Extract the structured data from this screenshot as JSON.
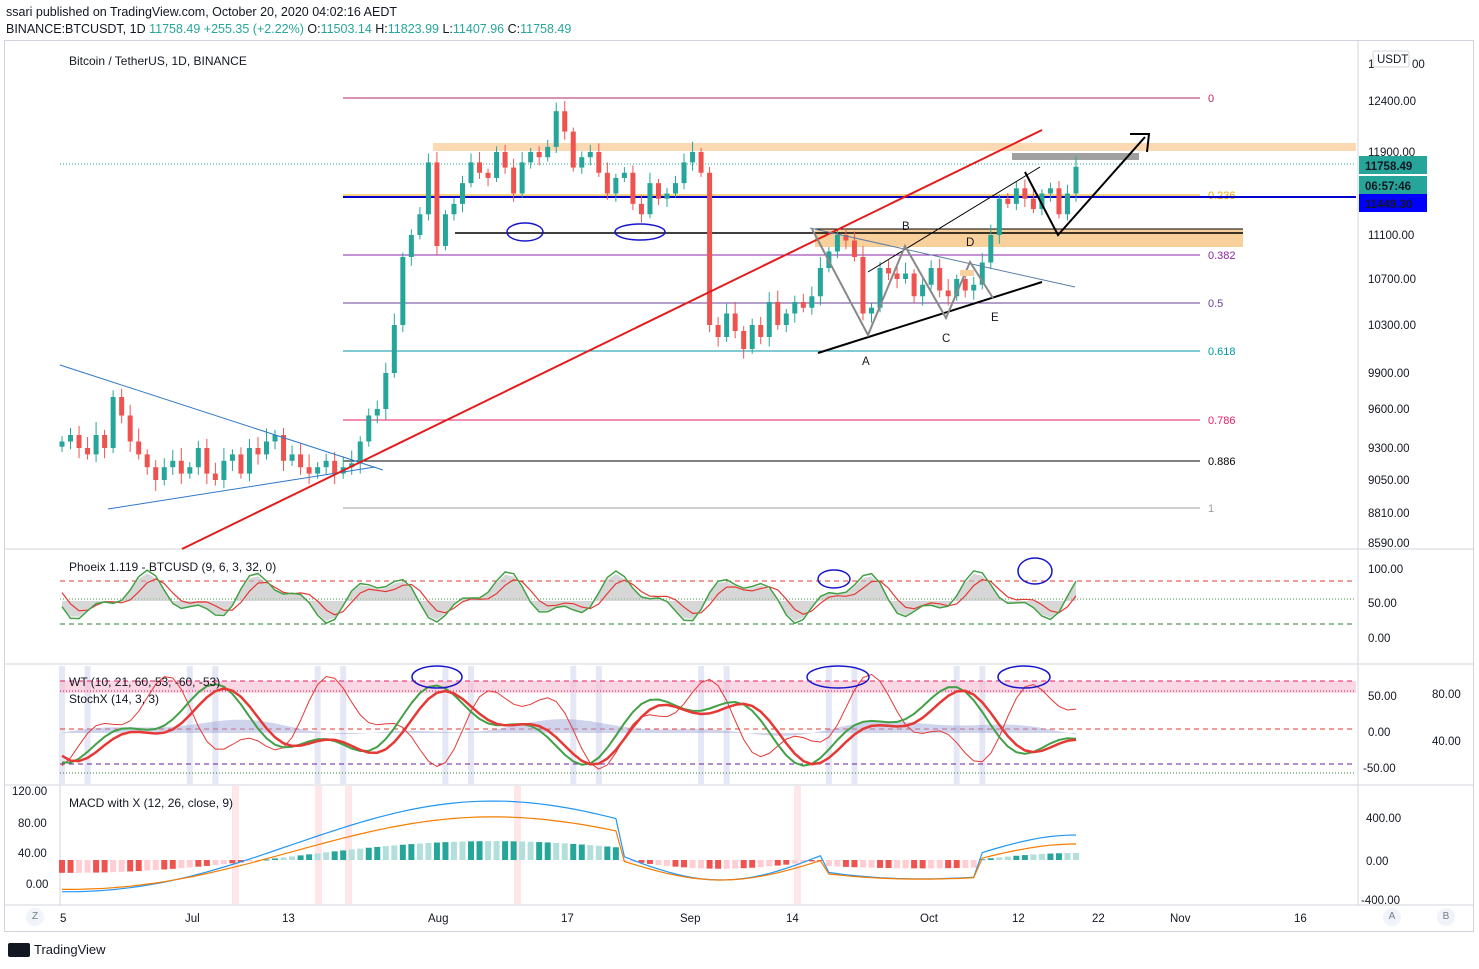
{
  "header": {
    "line1": "ssari published on TradingView.com, October 20, 2020 04:02:16 AEDT",
    "symbol": "BINANCE:BTCUSDT, 1D",
    "last": "11758.49",
    "change": "+255.35 (+2.22%)",
    "o_label": "O:",
    "o": "11503.14",
    "h_label": "H:",
    "h": "11823.99",
    "l_label": "L:",
    "l": "11407.96",
    "c_label": "C:",
    "c": "11758.49"
  },
  "main_pane": {
    "title": "Bitcoin / TetherUS, 1D, BINANCE",
    "currency_badge": "USDT",
    "price_axis": [
      "12400.00",
      "11900.00",
      "11100.00",
      "10700.00",
      "10300.00",
      "9900.00",
      "9600.00",
      "9300.00",
      "9050.00",
      "8810.00",
      "8590.00"
    ],
    "price_axis_top": "1",
    "price_tags": [
      {
        "text": "11758.49",
        "color": "#26a69a"
      },
      {
        "text": "06:57:46",
        "color": "#26a69a"
      },
      {
        "text": "11449.30",
        "color": "#0000ff"
      }
    ],
    "fib_levels": [
      {
        "label": "0",
        "color": "#b2246e"
      },
      {
        "label": "0.236",
        "color": "#f7a600"
      },
      {
        "label": "0.382",
        "color": "#8e24aa"
      },
      {
        "label": "0.5",
        "color": "#6a3d9a"
      },
      {
        "label": "0.618",
        "color": "#0097a7"
      },
      {
        "label": "0.786",
        "color": "#e91e63"
      },
      {
        "label": "0.886",
        "color": "#000000"
      },
      {
        "label": "1",
        "color": "#9e9e9e"
      }
    ],
    "pattern_labels": [
      "A",
      "B",
      "C",
      "D",
      "E"
    ]
  },
  "phoeix_pane": {
    "title": "Phoeix 1.119 - BTCUSD (9, 6, 3, 32, 0)",
    "axis": [
      "100.00",
      "50.00",
      "0.00"
    ]
  },
  "wt_pane": {
    "title": "WT (10, 21, 60, 53, -60, -53)",
    "title2": "StochX (14, 3, 3)",
    "axis": [
      "50.00",
      "0.00",
      "-50.00"
    ],
    "axis_right": [
      "80.00",
      "40.00"
    ]
  },
  "macd_pane": {
    "title": "MACD with X (12, 26, close, 9)",
    "axis_left": [
      "120.00",
      "80.00",
      "40.00",
      "0.00"
    ],
    "axis_right": [
      "400.00",
      "0.00",
      "-400.00"
    ]
  },
  "time_axis": [
    "5",
    "Jul",
    "13",
    "Aug",
    "17",
    "Sep",
    "14",
    "Oct",
    "12",
    "22",
    "Nov",
    "16"
  ],
  "corner_buttons": [
    "Z",
    "A",
    "B"
  ],
  "footer": {
    "brand": "TradingView"
  },
  "chart_data": {
    "type": "candlestick",
    "title": "Bitcoin / TetherUS, 1D, BINANCE",
    "ylim": [
      8590,
      12600
    ],
    "last_close": 11758.49,
    "x_range": [
      "2020-06-05",
      "2020-10-19"
    ],
    "closes_approx": [
      9350,
      9400,
      9300,
      9250,
      9400,
      9300,
      9700,
      9550,
      9350,
      9250,
      9150,
      9050,
      9150,
      9200,
      9100,
      9150,
      9300,
      9100,
      9050,
      9200,
      9250,
      9100,
      9300,
      9250,
      9350,
      9400,
      9200,
      9250,
      9150,
      9100,
      9150,
      9200,
      9100,
      9150,
      9180,
      9350,
      9550,
      9600,
      9900,
      10300,
      10900,
      11100,
      11300,
      11800,
      11000,
      11300,
      11400,
      11600,
      11800,
      11700,
      11650,
      11900,
      11750,
      11500,
      11800,
      11900,
      11850,
      11950,
      12300,
      12100,
      11750,
      11850,
      11900,
      11700,
      11500,
      11650,
      11700,
      11400,
      11300,
      11600,
      11450,
      11500,
      11600,
      11800,
      11900,
      11700,
      10300,
      10200,
      10400,
      10250,
      10100,
      10300,
      10200,
      10500,
      10300,
      10400,
      10500,
      10450,
      10550,
      10800,
      10950,
      11100,
      11050,
      10900,
      10400,
      10450,
      10800,
      10750,
      10700,
      10750,
      10550,
      10650,
      10800,
      10600,
      10550,
      10700,
      10600,
      10650,
      10850,
      11100,
      11450,
      11400,
      11550,
      11450,
      11350,
      11500,
      11550,
      11300,
      11500,
      11758
    ]
  }
}
